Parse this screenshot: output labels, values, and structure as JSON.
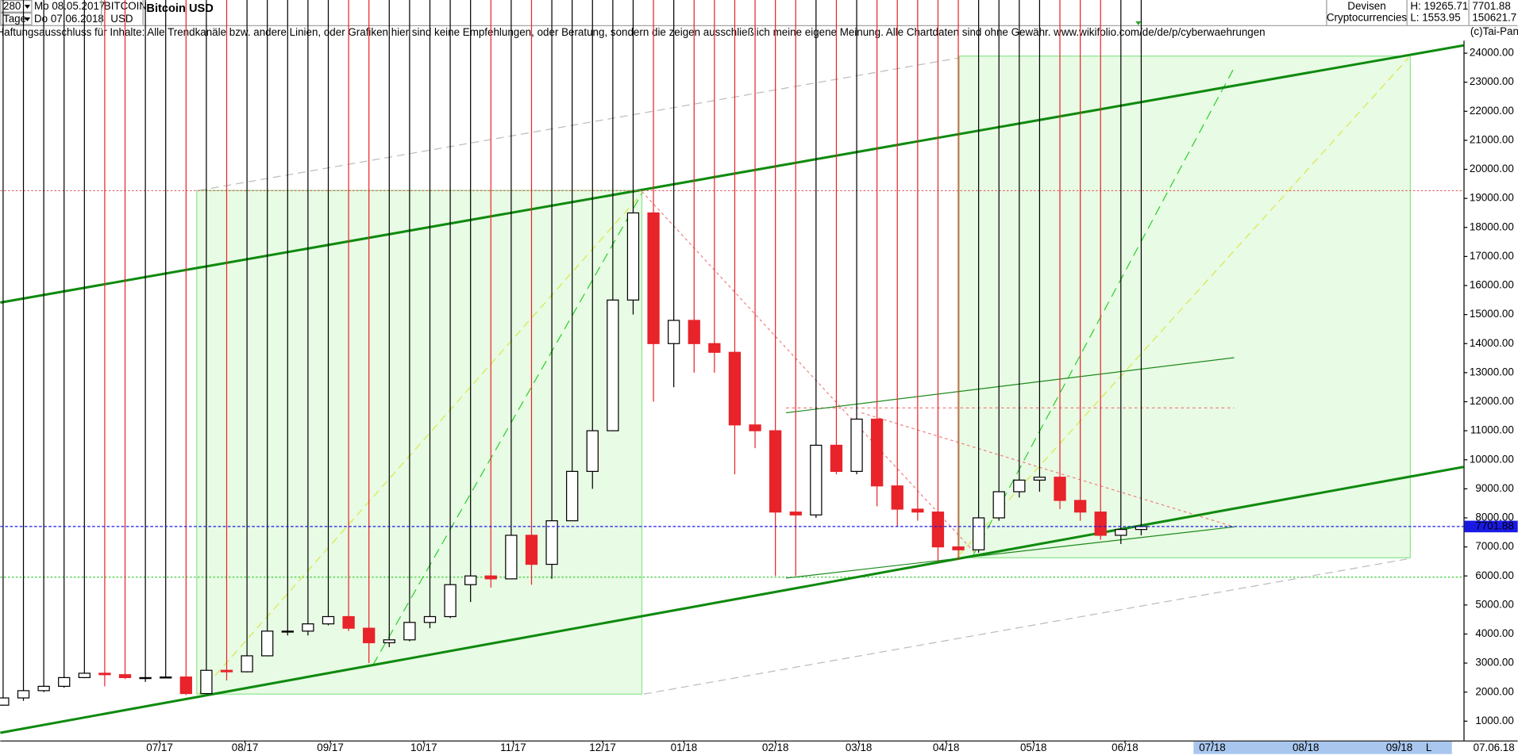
{
  "header": {
    "bars": "280",
    "start": "Mo 08.05.2017",
    "period": "Tage",
    "end": "Do 07.06.2018",
    "symbol": "BITCOIN",
    "currency": "USD",
    "market": "Devisen",
    "group": "Cryptocurrencies",
    "high": "H: 19265.71",
    "low": "L: 1553.95",
    "volume": "150621.7",
    "disclaimer": "Haftungsausschluss für Inhalte: Alle Trendkanäle bzw. andere Linien, oder Grafiken hier sind keine Empfehlungen, oder Beratung, sondern die zeigen ausschließlich meine eigene Meinung. Alle Chartdaten sind ohne Gewähr.  www.wikifolio.com/de/de/p/cyberwaehrungen",
    "copyright": "(c)Tai-Pan",
    "footer_date": "07.06.18",
    "footer_scale": "L"
  },
  "chart_data": {
    "type": "candlestick",
    "title": "Bitcoin USD",
    "open": [
      1550,
      1800,
      2050,
      2200,
      2500,
      2650,
      2600,
      2500,
      2500,
      2520,
      1950,
      2750,
      2700,
      3250,
      4100,
      4100,
      4350,
      4600,
      4200,
      3700,
      3800,
      4400,
      4600,
      5700,
      6000,
      5900,
      7400,
      6400,
      7900,
      9600,
      11000,
      15500,
      18500,
      14000,
      14800,
      14000,
      13700,
      11200,
      11000,
      8200,
      8100,
      10500,
      9600,
      11400,
      9100,
      8300,
      8200,
      7000,
      6900,
      8000,
      8900,
      9300,
      9400,
      8600,
      8200,
      7400,
      7600
    ],
    "high": 19265.71,
    "low": [
      1530,
      1700,
      2000,
      2150,
      2480,
      2200,
      2450,
      2350,
      2480,
      1900,
      1930,
      2400,
      2680,
      3230,
      3950,
      3950,
      4300,
      4100,
      3000,
      3550,
      3750,
      4200,
      4550,
      5100,
      5600,
      5900,
      5700,
      5900,
      7900,
      9000,
      11000,
      15000,
      12000,
      12500,
      13000,
      13000,
      9500,
      10400,
      6000,
      6000,
      8000,
      9500,
      9500,
      8400,
      7700,
      7900,
      6500,
      6550,
      6800,
      7900,
      8700,
      8900,
      8300,
      7900,
      7250,
      7100,
      7400
    ],
    "close": [
      1800,
      2050,
      2200,
      2500,
      2650,
      2600,
      2500,
      2500,
      2520,
      1950,
      2750,
      2700,
      3250,
      4100,
      4100,
      4350,
      4600,
      4200,
      3700,
      3800,
      4400,
      4600,
      5700,
      6000,
      5900,
      7400,
      6400,
      7900,
      9600,
      11000,
      15500,
      18500,
      14000,
      14800,
      14000,
      13700,
      11200,
      11000,
      8200,
      8100,
      10500,
      9600,
      11400,
      9100,
      8300,
      8200,
      7000,
      6900,
      8000,
      8900,
      9300,
      9400,
      8600,
      8200,
      7400,
      7600,
      7700
    ],
    "up_color": "#ffffff",
    "down_color": "#e8232a",
    "outline_color": "#000000",
    "last_price": 7701.88,
    "xlim": [
      -0.14,
      71.86
    ],
    "ylim": [
      334,
      24433
    ],
    "xticks": [
      {
        "value": 7.7,
        "label": "07/17"
      },
      {
        "value": 11.9,
        "label": "08/17"
      },
      {
        "value": 16.1,
        "label": "09/17"
      },
      {
        "value": 20.7,
        "label": "10/17"
      },
      {
        "value": 25.1,
        "label": "11/17"
      },
      {
        "value": 29.5,
        "label": "12/17"
      },
      {
        "value": 33.5,
        "label": "01/18"
      },
      {
        "value": 38.0,
        "label": "02/18"
      },
      {
        "value": 42.1,
        "label": "03/18"
      },
      {
        "value": 46.4,
        "label": "04/18"
      },
      {
        "value": 50.7,
        "label": "05/18"
      },
      {
        "value": 55.2,
        "label": "06/18"
      },
      {
        "value": 59.5,
        "label": "07/18"
      },
      {
        "value": 64.1,
        "label": "08/18"
      },
      {
        "value": 68.7,
        "label": "09/18"
      }
    ],
    "yticks": [
      {
        "value": 1000,
        "label": "1000.00"
      },
      {
        "value": 2000,
        "label": "2000.00"
      },
      {
        "value": 3000,
        "label": "3000.00"
      },
      {
        "value": 4000,
        "label": "4000.00"
      },
      {
        "value": 5000,
        "label": "5000.00"
      },
      {
        "value": 6000,
        "label": "6000.00"
      },
      {
        "value": 7000,
        "label": "7000.00"
      },
      {
        "value": 8000,
        "label": "8000.00"
      },
      {
        "value": 9000,
        "label": "9000.00"
      },
      {
        "value": 10000,
        "label": "10000.00"
      },
      {
        "value": 11000,
        "label": "11000.00"
      },
      {
        "value": 12000,
        "label": "12000.00"
      },
      {
        "value": 13000,
        "label": "13000.00"
      },
      {
        "value": 14000,
        "label": "14000.00"
      },
      {
        "value": 15000,
        "label": "15000.00"
      },
      {
        "value": 16000,
        "label": "16000.00"
      },
      {
        "value": 17000,
        "label": "17000.00"
      },
      {
        "value": 18000,
        "label": "18000.00"
      },
      {
        "value": 19000,
        "label": "19000.00"
      },
      {
        "value": 20000,
        "label": "20000.00"
      },
      {
        "value": 21000,
        "label": "21000.00"
      },
      {
        "value": 22000,
        "label": "22000.00"
      },
      {
        "value": 23000,
        "label": "23000.00"
      },
      {
        "value": 24000,
        "label": "24000.00"
      }
    ],
    "grid": false
  }
}
